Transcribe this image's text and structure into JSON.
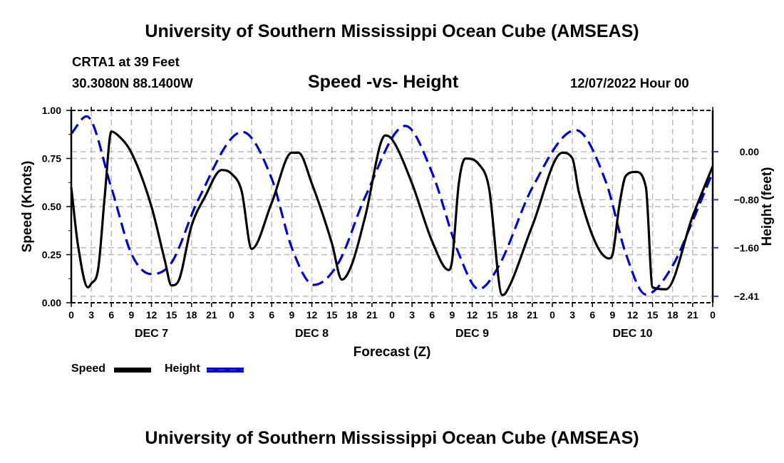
{
  "header": {
    "main_title": "University of Southern Mississippi Ocean Cube (AMSEAS)",
    "station": "CRTA1 at 39 Feet",
    "coordinates": "30.3080N  88.1400W",
    "subtitle": "Speed -vs- Height",
    "datestamp": "12/07/2022 Hour 00"
  },
  "footer": {
    "title": "University of Southern Mississippi Ocean Cube (AMSEAS)"
  },
  "legend": {
    "speed_label": "Speed",
    "height_label": "Height"
  },
  "chart_data": {
    "type": "line",
    "title": "Speed -vs- Height",
    "xlabel": "Forecast (Z)",
    "ylabel": "Speed (Knots)",
    "y2label": "Height (feet)",
    "x_unit": "forecast hour from 12/07/2022 00Z",
    "xlim": [
      0,
      96
    ],
    "ylim": [
      0,
      1
    ],
    "y2lim": [
      -2.41,
      0.8
    ],
    "grid": true,
    "legend_position": "bottom-left",
    "x_ticks": [
      0,
      3,
      6,
      9,
      12,
      15,
      18,
      21,
      24,
      27,
      30,
      33,
      36,
      39,
      42,
      45,
      48,
      51,
      54,
      57,
      60,
      63,
      66,
      69,
      72,
      75,
      78,
      81,
      84,
      87,
      90,
      93,
      96
    ],
    "x_tick_labels": [
      "0",
      "3",
      "6",
      "9",
      "12",
      "15",
      "18",
      "21",
      "0",
      "3",
      "6",
      "9",
      "12",
      "15",
      "18",
      "21",
      "0",
      "3",
      "6",
      "9",
      "12",
      "15",
      "18",
      "21",
      "0",
      "3",
      "6",
      "9",
      "12",
      "15",
      "18",
      "21",
      "0"
    ],
    "day_labels": [
      {
        "label": "DEC 7",
        "hour": 12
      },
      {
        "label": "DEC 8",
        "hour": 36
      },
      {
        "label": "DEC 9",
        "hour": 60
      },
      {
        "label": "DEC 10",
        "hour": 84
      }
    ],
    "y_ticks": [
      0.0,
      0.25,
      0.5,
      0.75,
      1.0
    ],
    "y_tick_labels": [
      "0.00",
      "0.25",
      "0.50",
      "0.75",
      "1.00"
    ],
    "y2_ticks": [
      0.0,
      -0.8,
      -1.6,
      -2.41
    ],
    "y2_tick_labels": [
      "0.00",
      "−0.80",
      "−1.60",
      "−2.41"
    ],
    "series": [
      {
        "name": "Speed",
        "axis": "left",
        "color": "#000000",
        "style": "solid",
        "x": [
          0,
          1,
          2.5,
          3,
          4,
          5,
          6,
          7,
          9,
          12,
          14,
          15,
          16,
          18,
          20,
          22.5,
          24,
          25.5,
          27,
          30,
          33,
          34,
          36,
          39,
          40.5,
          42,
          44,
          47,
          48,
          51,
          54,
          56.5,
          57,
          58,
          59,
          61,
          62.5,
          64.5,
          65,
          69,
          73.5,
          75,
          76,
          80.5,
          81,
          82,
          83,
          84.5,
          86,
          87,
          89,
          93,
          96
        ],
        "values": [
          0.6,
          0.3,
          0.08,
          0.1,
          0.17,
          0.55,
          0.89,
          0.87,
          0.78,
          0.5,
          0.22,
          0.09,
          0.11,
          0.4,
          0.55,
          0.69,
          0.67,
          0.58,
          0.28,
          0.52,
          0.78,
          0.78,
          0.62,
          0.31,
          0.12,
          0.2,
          0.45,
          0.87,
          0.85,
          0.62,
          0.32,
          0.17,
          0.22,
          0.62,
          0.75,
          0.72,
          0.6,
          0.04,
          0.05,
          0.4,
          0.78,
          0.75,
          0.57,
          0.23,
          0.25,
          0.5,
          0.66,
          0.68,
          0.6,
          0.08,
          0.07,
          0.45,
          0.71
        ]
      },
      {
        "name": "Height",
        "axis": "right",
        "color": "#0000cc",
        "style": "dashed",
        "x": [
          0,
          2.3,
          6,
          9,
          12,
          15,
          19,
          25.6,
          30,
          33,
          36.3,
          40,
          44,
          50,
          54,
          58,
          61,
          64,
          69,
          75.5,
          80,
          83,
          86,
          90,
          93,
          96
        ],
        "values": [
          0.3,
          0.59,
          -0.6,
          -1.7,
          -2.04,
          -1.85,
          -0.8,
          0.33,
          -0.45,
          -1.6,
          -2.22,
          -1.85,
          -0.75,
          0.43,
          -0.35,
          -1.7,
          -2.29,
          -1.9,
          -0.6,
          0.36,
          -0.5,
          -1.7,
          -2.38,
          -1.9,
          -1.15,
          -0.34
        ]
      }
    ]
  }
}
